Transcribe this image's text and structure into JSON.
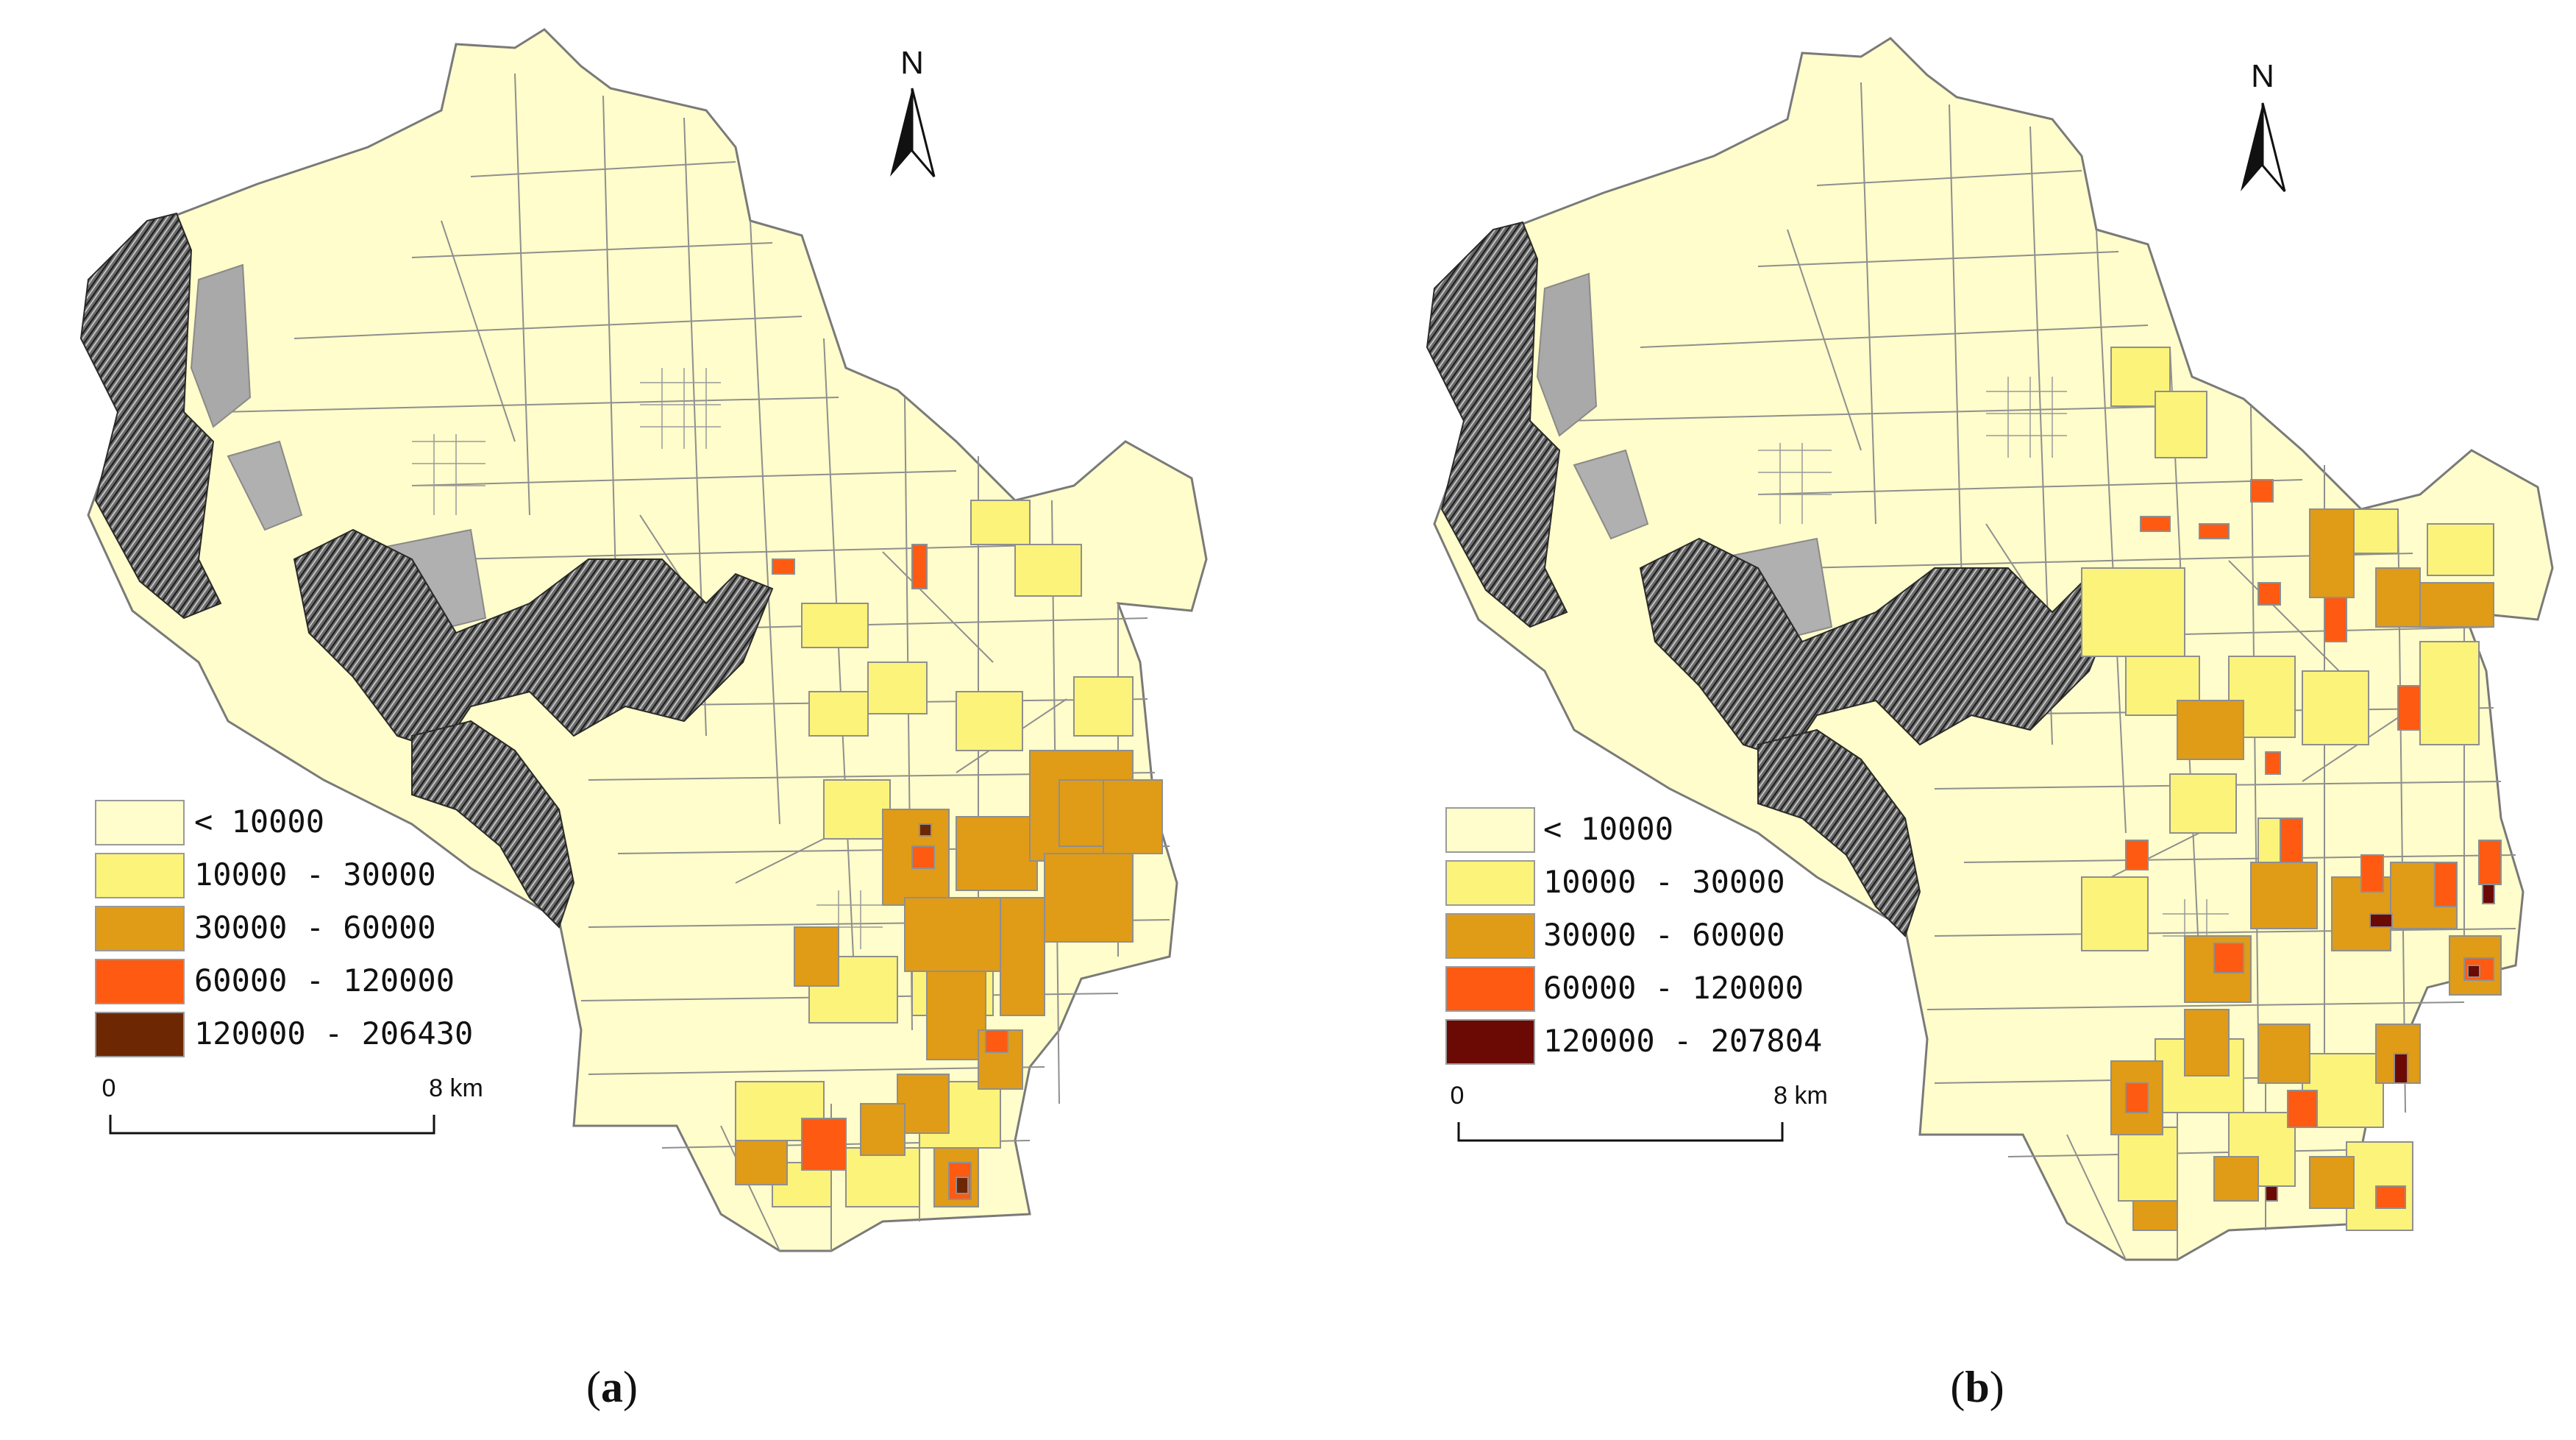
{
  "panels": [
    {
      "id": "a",
      "caption_open": "(",
      "caption_letter": "a",
      "caption_close": ")",
      "north_label": "N",
      "scale_start": "0",
      "scale_end": "8 km",
      "legend": [
        {
          "label": "< 10000",
          "color": "#FFFDCB"
        },
        {
          "label": "10000 - 30000",
          "color": "#FCF37A"
        },
        {
          "label": "30000 - 60000",
          "color": "#E09B17"
        },
        {
          "label": "60000 - 120000",
          "color": "#FF5A12"
        },
        {
          "label": "120000 - 206430",
          "color": "#6E2703"
        }
      ]
    },
    {
      "id": "b",
      "caption_open": "(",
      "caption_letter": "b",
      "caption_close": ")",
      "north_label": "N",
      "scale_start": "0",
      "scale_end": "8 km",
      "legend": [
        {
          "label": "< 10000",
          "color": "#FFFDCB"
        },
        {
          "label": "10000 - 30000",
          "color": "#FCF37A"
        },
        {
          "label": "30000 - 60000",
          "color": "#E09B17"
        },
        {
          "label": "60000 - 120000",
          "color": "#FF5A12"
        },
        {
          "label": "120000 - 207804",
          "color": "#6B0A04"
        }
      ]
    }
  ]
}
